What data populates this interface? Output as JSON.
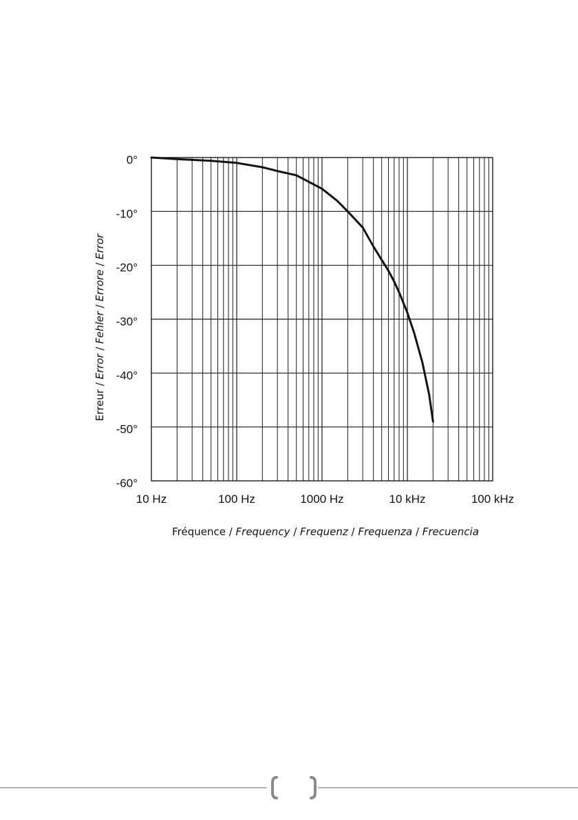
{
  "chart_data": {
    "type": "line",
    "x_scale": "log",
    "xlim": [
      10,
      100000
    ],
    "ylim": [
      -60,
      0
    ],
    "grid": true,
    "x_tick_labels": [
      {
        "value": 10,
        "label": "10 Hz"
      },
      {
        "value": 100,
        "label": "100 Hz"
      },
      {
        "value": 1000,
        "label": "1000 Hz"
      },
      {
        "value": 10000,
        "label": "10 kHz"
      },
      {
        "value": 100000,
        "label": "100 kHz"
      }
    ],
    "y_tick_labels": [
      {
        "value": 0,
        "label": "0°"
      },
      {
        "value": -10,
        "label": "-10°"
      },
      {
        "value": -20,
        "label": "-20°"
      },
      {
        "value": -30,
        "label": "-30°"
      },
      {
        "value": -40,
        "label": "-40°"
      },
      {
        "value": -50,
        "label": "-50°"
      },
      {
        "value": -60,
        "label": "-60°"
      }
    ],
    "xlabel_parts": [
      {
        "text": "Fréquence",
        "italic": false
      },
      {
        "text": " / ",
        "italic": false
      },
      {
        "text": "Frequency",
        "italic": true
      },
      {
        "text": " / ",
        "italic": false
      },
      {
        "text": "Frequenz",
        "italic": true
      },
      {
        "text": " / ",
        "italic": false
      },
      {
        "text": "Frequenza",
        "italic": true
      },
      {
        "text": " / ",
        "italic": false
      },
      {
        "text": "Frecuencia",
        "italic": true
      }
    ],
    "ylabel_parts": [
      {
        "text": "Erreur",
        "italic": false
      },
      {
        "text": " / ",
        "italic": false
      },
      {
        "text": "Error",
        "italic": true
      },
      {
        "text": " / ",
        "italic": false
      },
      {
        "text": "Fehler",
        "italic": true
      },
      {
        "text": " / ",
        "italic": false
      },
      {
        "text": "Errore",
        "italic": true
      },
      {
        "text": " / ",
        "italic": false
      },
      {
        "text": "Error",
        "italic": true
      }
    ],
    "series": [
      {
        "x": [
          10,
          20,
          50,
          100,
          200,
          300,
          500,
          700,
          1000,
          1500,
          2000,
          3000,
          4000,
          5000,
          6000,
          7000,
          8000,
          10000,
          12000,
          15000,
          18000,
          20000
        ],
        "y": [
          0,
          -0.3,
          -0.6,
          -1.0,
          -1.8,
          -2.5,
          -3.3,
          -4.5,
          -5.8,
          -8.0,
          -10.0,
          -13.0,
          -16.5,
          -19.0,
          -21.0,
          -23.0,
          -25.0,
          -28.8,
          -32.5,
          -38.0,
          -44.0,
          -49.0
        ]
      }
    ]
  },
  "colors": {
    "grid": "#1a1a1a",
    "curve": "#111111",
    "footer": "#9a9a9a"
  }
}
